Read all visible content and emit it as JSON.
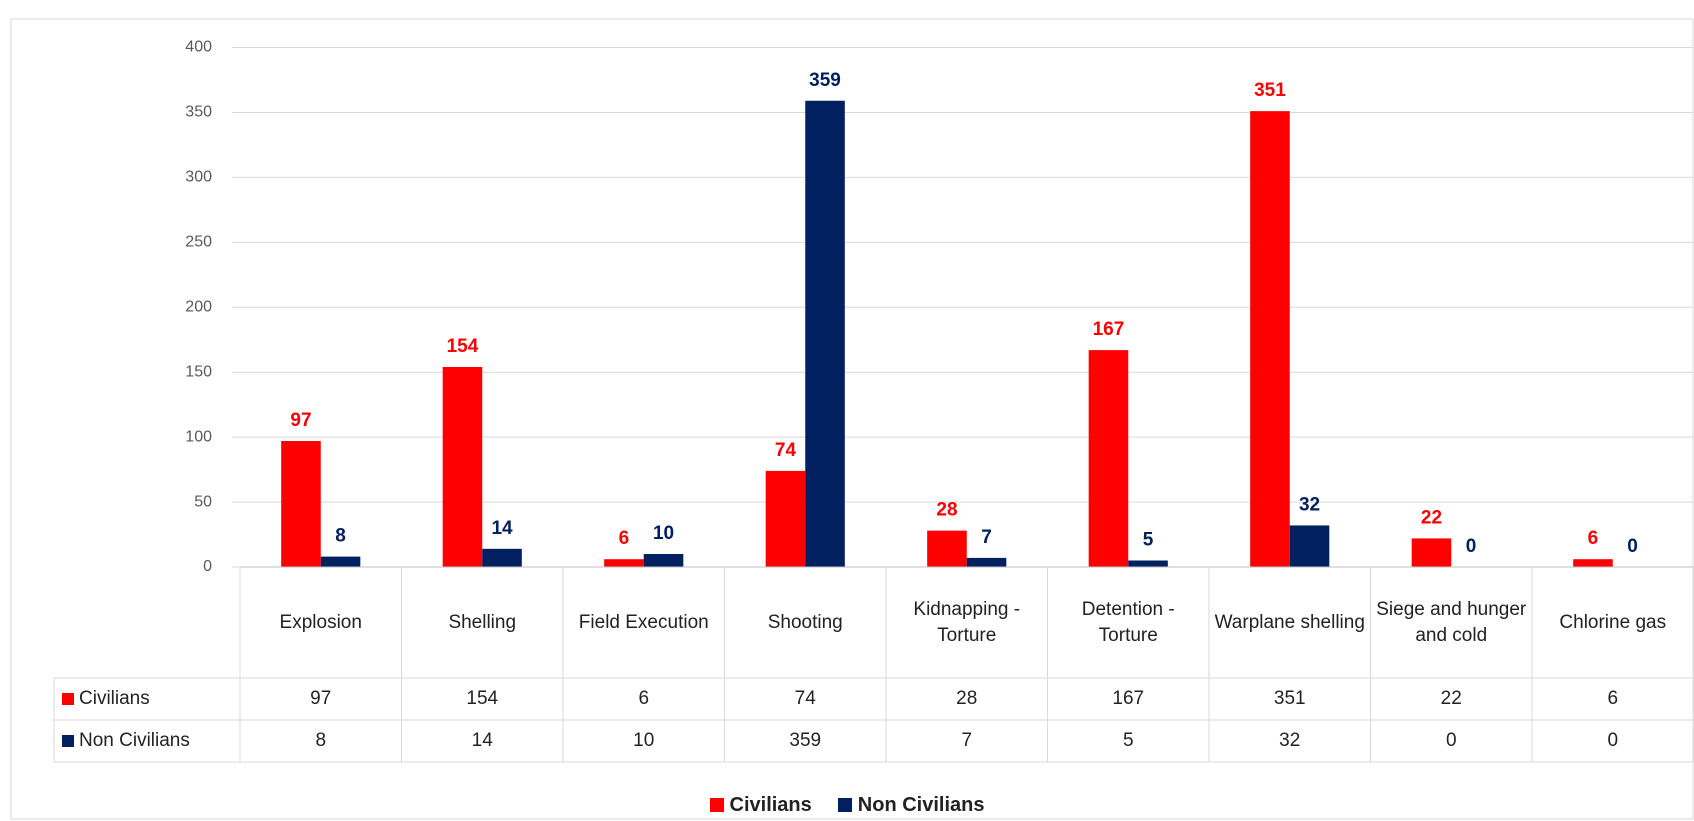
{
  "chart_data": {
    "type": "bar",
    "categories": [
      "Explosion",
      "Shelling",
      "Field Execution",
      "Shooting",
      "Kidnapping - Torture",
      "Detention - Torture",
      "Warplane shelling",
      "Siege and hunger and cold",
      "Chlorine gas"
    ],
    "series": [
      {
        "name": "Civilians",
        "color": "#ff0000",
        "values": [
          97,
          154,
          6,
          74,
          28,
          167,
          351,
          22,
          6
        ]
      },
      {
        "name": "Non Civilians",
        "color": "#002060",
        "values": [
          8,
          14,
          10,
          359,
          7,
          5,
          32,
          0,
          0
        ]
      }
    ],
    "ylim": [
      0,
      400
    ],
    "yticks": [
      0,
      50,
      100,
      150,
      200,
      250,
      300,
      350,
      400
    ],
    "grid": true,
    "legend": "bottom",
    "data_table": true
  }
}
